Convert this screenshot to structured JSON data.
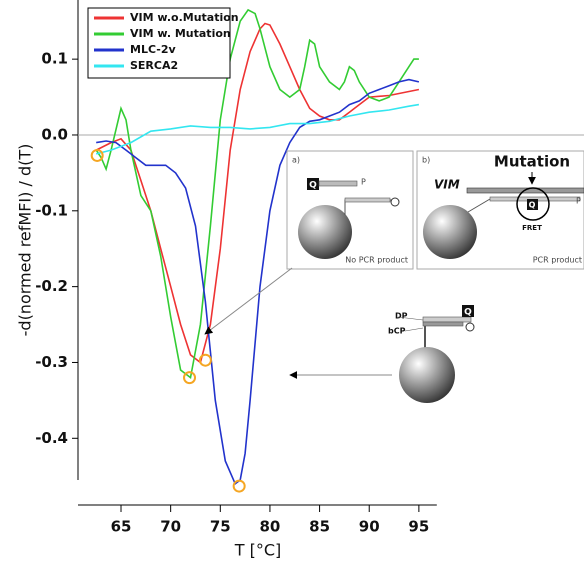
{
  "chart_data": {
    "type": "line",
    "xlabel": "T [°C]",
    "ylabel": "-d(normed refMFI) / d(T)",
    "xlim": [
      61,
      96
    ],
    "ylim": [
      -0.455,
      0.178
    ],
    "xticks": [
      65,
      70,
      75,
      80,
      85,
      90,
      95
    ],
    "yticks": [
      0.1,
      {
        "value": 0,
        "label": "0.0"
      },
      -0.1,
      -0.2,
      -0.3,
      -0.4
    ],
    "series": [
      {
        "name": "VIM w.o.Mutation",
        "color": "#ee3333",
        "x": [
          62.5,
          64,
          65,
          66,
          67,
          68,
          69,
          70,
          71,
          72,
          73,
          74,
          75,
          76,
          77,
          78,
          79,
          79.5,
          80,
          81,
          82,
          83,
          84,
          85,
          86,
          87,
          88,
          89,
          90,
          92,
          95
        ],
        "values": [
          -0.02,
          -0.01,
          -0.005,
          -0.02,
          -0.06,
          -0.1,
          -0.15,
          -0.2,
          -0.25,
          -0.29,
          -0.3,
          -0.25,
          -0.15,
          -0.02,
          0.06,
          0.11,
          0.14,
          0.147,
          0.145,
          0.12,
          0.09,
          0.06,
          0.035,
          0.025,
          0.02,
          0.02,
          0.03,
          0.04,
          0.05,
          0.052,
          0.06
        ]
      },
      {
        "name": "VIM w. Mutation",
        "color": "#33cc33",
        "x": [
          62.5,
          63,
          63.5,
          64,
          65,
          65.5,
          66,
          67,
          68,
          69,
          70,
          71,
          72,
          73,
          74,
          75,
          76,
          77,
          77.8,
          78.5,
          79,
          80,
          81,
          82,
          83,
          83.5,
          84,
          84.5,
          85,
          86,
          87,
          87.5,
          88,
          88.5,
          89,
          90,
          91,
          92,
          93,
          94,
          94.5,
          95
        ],
        "values": [
          -0.02,
          -0.03,
          -0.045,
          -0.02,
          0.035,
          0.02,
          -0.02,
          -0.08,
          -0.1,
          -0.16,
          -0.24,
          -0.31,
          -0.32,
          -0.25,
          -0.12,
          0.02,
          0.1,
          0.15,
          0.165,
          0.16,
          0.14,
          0.09,
          0.06,
          0.05,
          0.06,
          0.09,
          0.125,
          0.12,
          0.09,
          0.07,
          0.06,
          0.07,
          0.09,
          0.085,
          0.07,
          0.05,
          0.045,
          0.05,
          0.07,
          0.09,
          0.1,
          0.1
        ]
      },
      {
        "name": "MLC-2v",
        "color": "#2233cc",
        "x": [
          62.5,
          63.5,
          64.5,
          65.5,
          66.5,
          67.5,
          68.5,
          69.5,
          70.5,
          71.5,
          72.5,
          73.5,
          74.5,
          75.5,
          76.5,
          77,
          77.5,
          78,
          79,
          80,
          81,
          82,
          83,
          84,
          85,
          86,
          87,
          88,
          89,
          90,
          91,
          92,
          93,
          94,
          95
        ],
        "values": [
          -0.01,
          -0.008,
          -0.01,
          -0.02,
          -0.03,
          -0.04,
          -0.04,
          -0.04,
          -0.05,
          -0.07,
          -0.12,
          -0.22,
          -0.35,
          -0.43,
          -0.46,
          -0.455,
          -0.42,
          -0.35,
          -0.2,
          -0.1,
          -0.04,
          -0.01,
          0.01,
          0.018,
          0.02,
          0.025,
          0.03,
          0.04,
          0.045,
          0.055,
          0.06,
          0.065,
          0.07,
          0.073,
          0.07
        ]
      },
      {
        "name": "SERCA2",
        "color": "#33e6f0",
        "x": [
          62.5,
          64,
          66,
          68,
          70,
          72,
          74,
          76,
          78,
          80,
          82,
          84,
          86,
          88,
          90,
          92,
          94,
          95
        ],
        "values": [
          -0.025,
          -0.02,
          -0.01,
          0.005,
          0.008,
          0.012,
          0.01,
          0.01,
          0.008,
          0.01,
          0.015,
          0.015,
          0.018,
          0.025,
          0.03,
          0.033,
          0.038,
          0.04
        ]
      }
    ],
    "markers": {
      "color": "#f5a623",
      "x": [
        62.6,
        71.9,
        73.5,
        76.9
      ],
      "values": [
        -0.027,
        -0.32,
        -0.297,
        -0.463
      ]
    }
  },
  "inset": {
    "a_label": "a)",
    "a_caption": "No PCR product",
    "b_label": "b)",
    "b_caption": "PCR product",
    "mutation": "Mutation",
    "gene": "VIM",
    "fret": "FRET",
    "probe_p": "P",
    "quencher": "Q",
    "dp": "DP",
    "bcp": "bCP"
  }
}
